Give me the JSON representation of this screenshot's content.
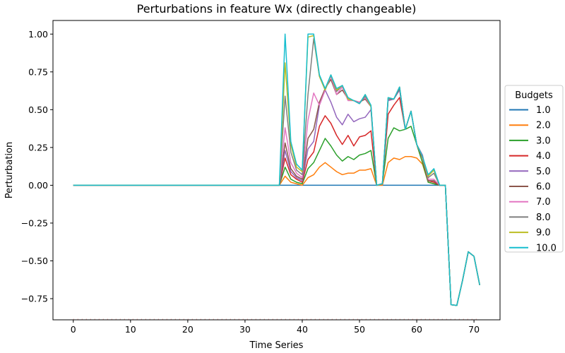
{
  "chart_data": {
    "type": "line",
    "title": "Perturbations in feature Wx (directly changeable)",
    "xlabel": "Time Series",
    "ylabel": "Perturbation",
    "xlim": [
      -3.55,
      74.55
    ],
    "ylim": [
      -0.89,
      1.09
    ],
    "xticks": [
      0,
      10,
      20,
      30,
      40,
      50,
      60,
      70
    ],
    "yticks": [
      -0.75,
      -0.5,
      -0.25,
      0.0,
      0.25,
      0.5,
      0.75,
      1.0
    ],
    "ytick_labels": [
      "−0.75",
      "−0.50",
      "−0.25",
      "0.00",
      "0.25",
      "0.50",
      "0.75",
      "1.00"
    ],
    "grid": false,
    "legend": {
      "title": "Budgets",
      "placement": "center-right outside"
    },
    "x": [
      0,
      1,
      2,
      3,
      4,
      5,
      6,
      7,
      8,
      9,
      10,
      11,
      12,
      13,
      14,
      15,
      16,
      17,
      18,
      19,
      20,
      21,
      22,
      23,
      24,
      25,
      26,
      27,
      28,
      29,
      30,
      31,
      32,
      33,
      34,
      35,
      36,
      37,
      38,
      39,
      40,
      41,
      42,
      43,
      44,
      45,
      46,
      47,
      48,
      49,
      50,
      51,
      52,
      53,
      54,
      55,
      56,
      57,
      58,
      59,
      60,
      61,
      62,
      63,
      64,
      65,
      66,
      67,
      68,
      69,
      70,
      71
    ],
    "tail": {
      "from_x": 65,
      "values": [
        0.0,
        -0.79,
        -0.795,
        -0.63,
        -0.44,
        -0.47,
        -0.66
      ]
    },
    "series": [
      {
        "name": "1.0",
        "color": "#1f77b4",
        "values": [
          0,
          0,
          0,
          0,
          0,
          0,
          0,
          0,
          0,
          0,
          0,
          0,
          0,
          0,
          0,
          0,
          0,
          0,
          0,
          0,
          0,
          0,
          0,
          0,
          0,
          0,
          0,
          0,
          0,
          0,
          0,
          0,
          0,
          0,
          0,
          0,
          0,
          0,
          0,
          0,
          0,
          0,
          0,
          0,
          0,
          0,
          0,
          0,
          0,
          0,
          0,
          0,
          0,
          0,
          0,
          0,
          0,
          0,
          0,
          0,
          0,
          0,
          0,
          0,
          0,
          0,
          -0.79,
          -0.795,
          -0.63,
          -0.44,
          -0.47,
          -0.66
        ]
      },
      {
        "name": "2.0",
        "color": "#ff7f0e",
        "values": [
          0,
          0,
          0,
          0,
          0,
          0,
          0,
          0,
          0,
          0,
          0,
          0,
          0,
          0,
          0,
          0,
          0,
          0,
          0,
          0,
          0,
          0,
          0,
          0,
          0,
          0,
          0,
          0,
          0,
          0,
          0,
          0,
          0,
          0,
          0,
          0,
          0,
          0.06,
          0.02,
          0.01,
          0,
          0.05,
          0.07,
          0.12,
          0.15,
          0.12,
          0.09,
          0.07,
          0.08,
          0.08,
          0.1,
          0.1,
          0.11,
          0,
          0,
          0.15,
          0.18,
          0.17,
          0.19,
          0.19,
          0.18,
          0.14,
          0.02,
          0.01,
          0,
          0,
          -0.79,
          -0.795,
          -0.63,
          -0.44,
          -0.47,
          -0.66
        ]
      },
      {
        "name": "3.0",
        "color": "#2ca02c",
        "values": [
          0,
          0,
          0,
          0,
          0,
          0,
          0,
          0,
          0,
          0,
          0,
          0,
          0,
          0,
          0,
          0,
          0,
          0,
          0,
          0,
          0,
          0,
          0,
          0,
          0,
          0,
          0,
          0,
          0,
          0,
          0,
          0,
          0,
          0,
          0,
          0,
          0,
          0.12,
          0.04,
          0.02,
          0.01,
          0.11,
          0.15,
          0.23,
          0.31,
          0.26,
          0.2,
          0.16,
          0.19,
          0.17,
          0.2,
          0.21,
          0.23,
          0,
          0.01,
          0.31,
          0.38,
          0.36,
          0.37,
          0.39,
          0.27,
          0.15,
          0.02,
          0.01,
          0,
          0,
          -0.79,
          -0.795,
          -0.63,
          -0.44,
          -0.47,
          -0.66
        ]
      },
      {
        "name": "4.0",
        "color": "#d62728",
        "values": [
          0,
          0,
          0,
          0,
          0,
          0,
          0,
          0,
          0,
          0,
          0,
          0,
          0,
          0,
          0,
          0,
          0,
          0,
          0,
          0,
          0,
          0,
          0,
          0,
          0,
          0,
          0,
          0,
          0,
          0,
          0,
          0,
          0,
          0,
          0,
          0,
          0,
          0.18,
          0.07,
          0.04,
          0.02,
          0.17,
          0.22,
          0.39,
          0.46,
          0.41,
          0.33,
          0.27,
          0.33,
          0.26,
          0.32,
          0.33,
          0.36,
          0,
          0.01,
          0.47,
          0.53,
          0.58,
          0.37,
          0.49,
          0.27,
          0.18,
          0.03,
          0.02,
          0,
          0,
          -0.79,
          -0.795,
          -0.63,
          -0.44,
          -0.47,
          -0.66
        ]
      },
      {
        "name": "5.0",
        "color": "#9467bd",
        "values": [
          0,
          0,
          0,
          0,
          0,
          0,
          0,
          0,
          0,
          0,
          0,
          0,
          0,
          0,
          0,
          0,
          0,
          0,
          0,
          0,
          0,
          0,
          0,
          0,
          0,
          0,
          0,
          0,
          0,
          0,
          0,
          0,
          0,
          0,
          0,
          0,
          0,
          0.23,
          0.09,
          0.05,
          0.03,
          0.24,
          0.29,
          0.53,
          0.63,
          0.55,
          0.45,
          0.4,
          0.47,
          0.42,
          0.44,
          0.45,
          0.5,
          0,
          0.01,
          0.56,
          0.57,
          0.63,
          0.37,
          0.49,
          0.27,
          0.2,
          0.03,
          0.03,
          0,
          0,
          -0.79,
          -0.795,
          -0.63,
          -0.44,
          -0.47,
          -0.66
        ]
      },
      {
        "name": "6.0",
        "color": "#8c564b",
        "values": [
          0,
          0,
          0,
          0,
          0,
          0,
          0,
          0,
          0,
          0,
          0,
          0,
          0,
          0,
          0,
          0,
          0,
          0,
          0,
          0,
          0,
          0,
          0,
          0,
          0,
          0,
          0,
          0,
          0,
          0,
          0,
          0,
          0,
          0,
          0,
          0,
          0,
          0.28,
          0.11,
          0.06,
          0.04,
          0.31,
          0.37,
          0.55,
          0.64,
          0.7,
          0.6,
          0.63,
          0.57,
          0.56,
          0.55,
          0.57,
          0.52,
          0,
          0.01,
          0.57,
          0.57,
          0.64,
          0.37,
          0.49,
          0.27,
          0.19,
          0.03,
          0.03,
          0,
          0,
          -0.79,
          -0.795,
          -0.63,
          -0.44,
          -0.47,
          -0.66
        ]
      },
      {
        "name": "7.0",
        "color": "#e377c2",
        "values": [
          0,
          0,
          0,
          0,
          0,
          0,
          0,
          0,
          0,
          0,
          0,
          0,
          0,
          0,
          0,
          0,
          0,
          0,
          0,
          0,
          0,
          0,
          0,
          0,
          0,
          0,
          0,
          0,
          0,
          0,
          0,
          0,
          0,
          0,
          0,
          0,
          0,
          0.38,
          0.15,
          0.08,
          0.05,
          0.43,
          0.61,
          0.53,
          0.63,
          0.72,
          0.6,
          0.65,
          0.56,
          0.56,
          0.55,
          0.58,
          0.52,
          0,
          0.01,
          0.57,
          0.57,
          0.65,
          0.37,
          0.49,
          0.27,
          0.19,
          0.04,
          0.04,
          0,
          0,
          -0.79,
          -0.795,
          -0.63,
          -0.44,
          -0.47,
          -0.66
        ]
      },
      {
        "name": "8.0",
        "color": "#7f7f7f",
        "values": [
          0,
          0,
          0,
          0,
          0,
          0,
          0,
          0,
          0,
          0,
          0,
          0,
          0,
          0,
          0,
          0,
          0,
          0,
          0,
          0,
          0,
          0,
          0,
          0,
          0,
          0,
          0,
          0,
          0,
          0,
          0,
          0,
          0,
          0,
          0,
          0,
          0,
          0.59,
          0.22,
          0.1,
          0.07,
          0.6,
          0.97,
          0.72,
          0.63,
          0.73,
          0.62,
          0.66,
          0.57,
          0.56,
          0.54,
          0.59,
          0.52,
          0,
          0.01,
          0.57,
          0.57,
          0.65,
          0.37,
          0.49,
          0.27,
          0.19,
          0.05,
          0.08,
          0,
          0,
          -0.79,
          -0.795,
          -0.63,
          -0.44,
          -0.47,
          -0.66
        ]
      },
      {
        "name": "9.0",
        "color": "#bcbd22",
        "values": [
          0,
          0,
          0,
          0,
          0,
          0,
          0,
          0,
          0,
          0,
          0,
          0,
          0,
          0,
          0,
          0,
          0,
          0,
          0,
          0,
          0,
          0,
          0,
          0,
          0,
          0,
          0,
          0,
          0,
          0,
          0,
          0,
          0,
          0,
          0,
          0,
          0,
          0.81,
          0.27,
          0.12,
          0.09,
          0.98,
          0.99,
          0.72,
          0.63,
          0.73,
          0.63,
          0.66,
          0.57,
          0.56,
          0.54,
          0.6,
          0.52,
          0,
          0.01,
          0.58,
          0.57,
          0.65,
          0.37,
          0.49,
          0.27,
          0.19,
          0.06,
          0.1,
          0,
          0,
          -0.79,
          -0.795,
          -0.63,
          -0.44,
          -0.47,
          -0.66
        ]
      },
      {
        "name": "10.0",
        "color": "#17becf",
        "values": [
          0,
          0,
          0,
          0,
          0,
          0,
          0,
          0,
          0,
          0,
          0,
          0,
          0,
          0,
          0,
          0,
          0,
          0,
          0,
          0,
          0,
          0,
          0,
          0,
          0,
          0,
          0,
          0,
          0,
          0,
          0,
          0,
          0,
          0,
          0,
          0,
          0,
          1.0,
          0.29,
          0.14,
          0.1,
          1.0,
          1.0,
          0.73,
          0.64,
          0.73,
          0.64,
          0.66,
          0.58,
          0.56,
          0.54,
          0.6,
          0.53,
          0,
          0.01,
          0.58,
          0.57,
          0.65,
          0.37,
          0.49,
          0.27,
          0.19,
          0.07,
          0.11,
          0,
          0,
          -0.79,
          -0.795,
          -0.63,
          -0.44,
          -0.47,
          -0.66
        ]
      }
    ]
  }
}
